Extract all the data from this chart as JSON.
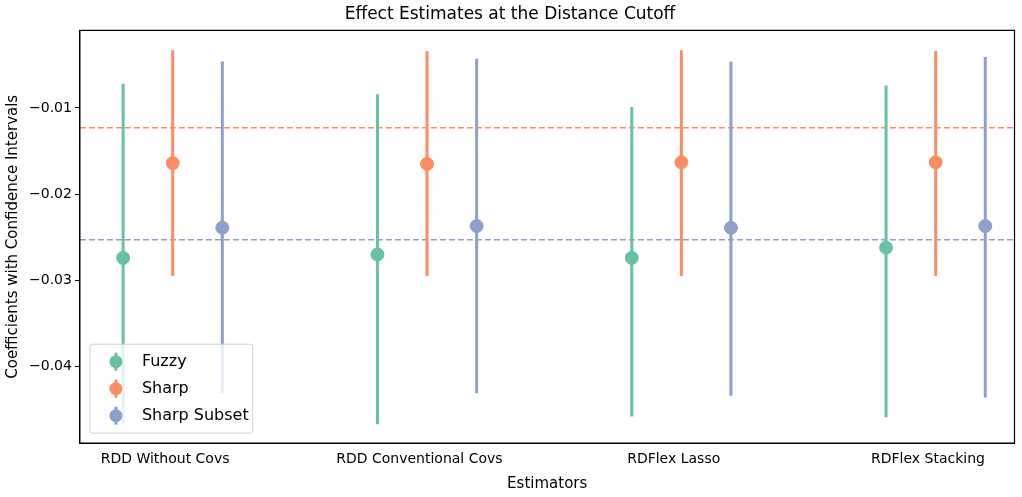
{
  "chart_data": {
    "type": "scatter",
    "title": "Effect Estimates at the Distance Cutoff",
    "xlabel": "Estimators",
    "ylabel": "Coefficients with Confidence Intervals",
    "categories": [
      "RDD Without Covs",
      "RDD Conventional Covs",
      "RDFlex Lasso",
      "RDFlex Stacking"
    ],
    "series": [
      {
        "name": "Fuzzy",
        "color": "#66c2a5",
        "values": [
          -0.0274,
          -0.027,
          -0.0274,
          -0.0262
        ],
        "errors": [
          [
            -0.0466,
            -0.0072
          ],
          [
            -0.0467,
            -0.0084
          ],
          [
            -0.0458,
            -0.0099
          ],
          [
            -0.0459,
            -0.0074
          ]
        ]
      },
      {
        "name": "Sharp",
        "color": "#fc8d62",
        "values": [
          -0.0164,
          -0.0165,
          -0.0163,
          -0.0163
        ],
        "errors": [
          [
            -0.0295,
            -0.0033
          ],
          [
            -0.0295,
            -0.0034
          ],
          [
            -0.0295,
            -0.0033
          ],
          [
            -0.0295,
            -0.0034
          ]
        ]
      },
      {
        "name": "Sharp Subset",
        "color": "#8da0cb",
        "values": [
          -0.0239,
          -0.0237,
          -0.0239,
          -0.0237
        ],
        "errors": [
          [
            -0.0431,
            -0.0046
          ],
          [
            -0.0431,
            -0.0043
          ],
          [
            -0.0434,
            -0.0046
          ],
          [
            -0.0436,
            -0.0041
          ]
        ]
      }
    ],
    "ylim": [
      -0.0489,
      -0.001
    ],
    "yticks": [
      {
        "value": -0.01,
        "label": "−0.01"
      },
      {
        "value": -0.02,
        "label": "−0.02"
      },
      {
        "value": -0.03,
        "label": "−0.03"
      },
      {
        "value": -0.04,
        "label": "−0.04"
      }
    ],
    "ref_lines": [
      {
        "axis": "y",
        "value": -0.0123,
        "color": "#fc8d62",
        "line_style": "dashed"
      },
      {
        "axis": "y",
        "value": -0.0253,
        "color": "#8da0cb",
        "line_style": "dashed"
      }
    ],
    "marker": "circle",
    "grid": false,
    "legend": "bottom left"
  }
}
